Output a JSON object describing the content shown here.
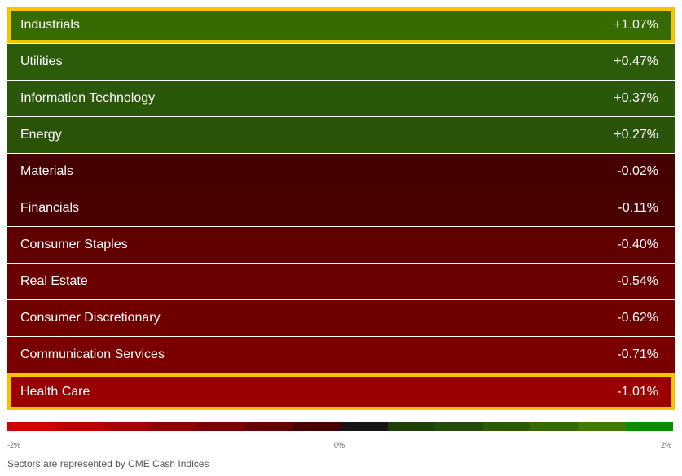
{
  "sectors": [
    {
      "name": "Industrials",
      "change": "+1.07%",
      "color": "#356b00",
      "highlighted": true
    },
    {
      "name": "Utilities",
      "change": "+0.47%",
      "color": "#2c5b0a",
      "highlighted": false
    },
    {
      "name": "Information Technology",
      "change": "+0.37%",
      "color": "#2a5709",
      "highlighted": false
    },
    {
      "name": "Energy",
      "change": "+0.27%",
      "color": "#2a5209",
      "highlighted": false
    },
    {
      "name": "Materials",
      "change": "-0.02%",
      "color": "#470000",
      "highlighted": false
    },
    {
      "name": "Financials",
      "change": "-0.11%",
      "color": "#4b0000",
      "highlighted": false
    },
    {
      "name": "Consumer Staples",
      "change": "-0.40%",
      "color": "#600000",
      "highlighted": false
    },
    {
      "name": "Real Estate",
      "change": "-0.54%",
      "color": "#6a0000",
      "highlighted": false
    },
    {
      "name": "Consumer Discretionary",
      "change": "-0.62%",
      "color": "#700000",
      "highlighted": false
    },
    {
      "name": "Communication Services",
      "change": "-0.71%",
      "color": "#7a0000",
      "highlighted": false
    },
    {
      "name": "Health Care",
      "change": "-1.01%",
      "color": "#9b0000",
      "highlighted": true
    }
  ],
  "scale": {
    "min_label": "-2%",
    "mid_label": "0%",
    "max_label": "2%",
    "colors": [
      "#d00000",
      "#bb0000",
      "#a80000",
      "#930000",
      "#7c0000",
      "#640000",
      "#4a0000",
      "#161616",
      "#1e3f06",
      "#234d06",
      "#2b5b05",
      "#336a04",
      "#3f7a03",
      "#088c00"
    ]
  },
  "footnote": "Sectors are represented by CME Cash Indices",
  "highlight_color": "#f5c400"
}
